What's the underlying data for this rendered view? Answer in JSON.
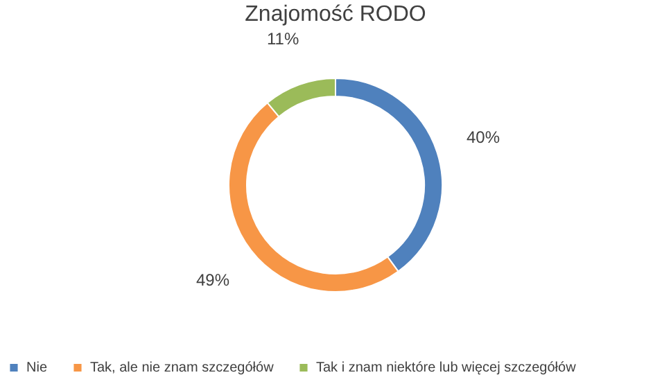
{
  "chart_data": {
    "type": "donut",
    "title": "Znajomość RODO",
    "categories": [
      "Nie",
      "Tak, ale nie znam szczegółów",
      "Tak i znam niektóre lub więcej szczegółów"
    ],
    "values": [
      40,
      49,
      11
    ],
    "colors": [
      "#4f81bd",
      "#f79646",
      "#9bbb59"
    ],
    "value_labels": [
      "40%",
      "49%",
      "11%"
    ],
    "legend": "bottom"
  }
}
